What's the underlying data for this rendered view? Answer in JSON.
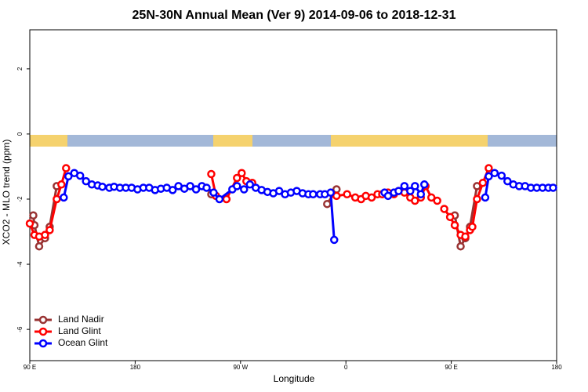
{
  "chart_data": {
    "type": "line",
    "title": "25N-30N Annual Mean (Ver 9)   2014-09-06 to 2018-12-31",
    "x_label": "Longitude",
    "y_label": "XCO2 - MLO trend (ppm)",
    "xlim": [
      90,
      540
    ],
    "xticks": [
      {
        "value": 90,
        "label": "90 E"
      },
      180,
      {
        "value": 270,
        "label": "90 W"
      },
      {
        "value": 360,
        "label": "0"
      },
      {
        "value": 450,
        "label": "90 E"
      },
      {
        "value": 540,
        "label": "180"
      }
    ],
    "ylim": [
      -6.96,
      3.2
    ],
    "yticks": [
      -6,
      -4,
      -2,
      0,
      2
    ],
    "legend": "bottom-left",
    "series": [
      {
        "name": "Land Nadir",
        "color": "#993333",
        "x": [
          93,
          94,
          98,
          103,
          107,
          113,
          null,
          245,
          249,
          null,
          344,
          352,
          null,
          453,
          458,
          462,
          466,
          472
        ],
        "values": [
          -2.5,
          -2.8,
          -3.45,
          -3.2,
          -2.85,
          -1.6,
          null,
          -1.85,
          -1.9,
          null,
          -2.15,
          -1.7,
          null,
          -2.5,
          -3.45,
          -3.2,
          -2.85,
          -1.6
        ]
      },
      {
        "name": "Land Glint",
        "color": "#ff0000",
        "x": [
          90,
          94,
          98,
          103,
          107,
          113,
          117,
          121,
          null,
          245,
          249,
          258,
          267,
          271,
          275,
          280,
          null,
          352,
          361,
          368,
          373,
          377,
          382,
          387,
          391,
          396,
          401,
          405,
          410,
          415,
          419,
          424,
          428,
          433,
          438,
          null,
          444,
          449,
          453,
          458,
          462,
          466,
          468,
          472,
          477,
          482
        ],
        "values": [
          -2.75,
          -3.1,
          -3.15,
          -3.1,
          -2.95,
          -2.0,
          -1.55,
          -1.05,
          null,
          -1.23,
          -1.9,
          -2.0,
          -1.35,
          -1.2,
          -1.45,
          -1.5,
          null,
          -1.9,
          -1.85,
          -1.95,
          -2.0,
          -1.9,
          -1.95,
          -1.85,
          -1.85,
          -1.8,
          -1.85,
          -1.75,
          -1.8,
          -1.95,
          -2.05,
          -1.95,
          -1.6,
          -1.95,
          -2.05,
          null,
          -2.3,
          -2.55,
          -2.8,
          -3.1,
          -3.15,
          -2.95,
          -2.85,
          -2.0,
          -1.5,
          -1.05
        ]
      },
      {
        "name": "Ocean Glint",
        "color": "#0000ff",
        "x": [
          119,
          123,
          128,
          133,
          138,
          143,
          148,
          152,
          158,
          162,
          167,
          172,
          177,
          182,
          187,
          192,
          197,
          202,
          207,
          212,
          217,
          222,
          227,
          232,
          237,
          241,
          247,
          252,
          263,
          267,
          273,
          278,
          283,
          288,
          293,
          298,
          303,
          308,
          313,
          318,
          323,
          328,
          332,
          338,
          342,
          347,
          350,
          null,
          393,
          396,
          401,
          405,
          410,
          415,
          419,
          424,
          427,
          null,
          479,
          482,
          487,
          493,
          498,
          503,
          508,
          513,
          518,
          523,
          528,
          533,
          537
        ],
        "values": [
          -1.95,
          -1.3,
          -1.2,
          -1.28,
          -1.45,
          -1.55,
          -1.58,
          -1.62,
          -1.65,
          -1.62,
          -1.65,
          -1.65,
          -1.65,
          -1.7,
          -1.65,
          -1.65,
          -1.72,
          -1.68,
          -1.65,
          -1.72,
          -1.6,
          -1.68,
          -1.6,
          -1.7,
          -1.6,
          -1.65,
          -1.8,
          -2.0,
          -1.7,
          -1.6,
          -1.7,
          -1.55,
          -1.65,
          -1.72,
          -1.78,
          -1.82,
          -1.75,
          -1.85,
          -1.8,
          -1.75,
          -1.82,
          -1.85,
          -1.85,
          -1.85,
          -1.85,
          -1.8,
          -3.25,
          null,
          -1.8,
          -1.9,
          -1.8,
          -1.75,
          -1.6,
          -1.75,
          -1.6,
          -1.85,
          -1.55,
          null,
          -1.95,
          -1.3,
          -1.2,
          -1.28,
          -1.45,
          -1.55,
          -1.6,
          -1.6,
          -1.65,
          -1.65,
          -1.65,
          -1.65,
          -1.65
        ]
      }
    ]
  }
}
